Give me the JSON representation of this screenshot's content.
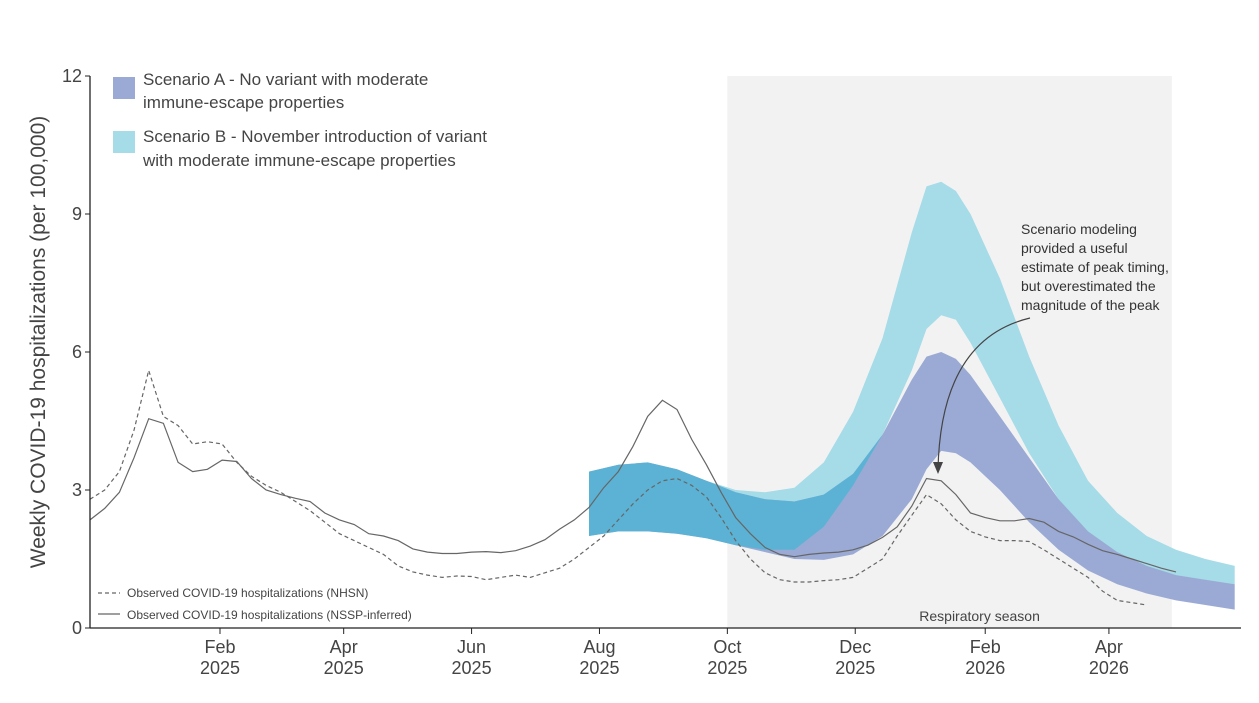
{
  "chart_data": {
    "type": "line",
    "ylabel": "Weekly COVID-19 hospitalizations (per 100,000)",
    "xlabel": "",
    "ylim": [
      0,
      12
    ],
    "y_ticks": [
      0,
      3,
      6,
      9,
      12
    ],
    "x_ticks": [
      {
        "date": "2025-02-01",
        "month": "Feb",
        "year": "2025"
      },
      {
        "date": "2025-04-01",
        "month": "Apr",
        "year": "2025"
      },
      {
        "date": "2025-06-01",
        "month": "Jun",
        "year": "2025"
      },
      {
        "date": "2025-08-01",
        "month": "Aug",
        "year": "2025"
      },
      {
        "date": "2025-10-01",
        "month": "Oct",
        "year": "2025"
      },
      {
        "date": "2025-12-01",
        "month": "Dec",
        "year": "2025"
      },
      {
        "date": "2026-02-01",
        "month": "Feb",
        "year": "2026"
      },
      {
        "date": "2026-04-01",
        "month": "Apr",
        "year": "2026"
      }
    ],
    "season": {
      "label": "Respiratory season",
      "start": "2025-10-01",
      "end": "2026-05-01"
    },
    "legend": {
      "scenario_a_line1": "Scenario A - No variant with moderate",
      "scenario_a_line2": "immune-escape properties",
      "scenario_b_line1": "Scenario B - November introduction of variant",
      "scenario_b_line2": "with moderate immune-escape properties",
      "nhsn": "Observed COVID-19 hospitalizations (NHSN)",
      "nssp": "Observed COVID-19 hospitalizations (NSSP-inferred)"
    },
    "annotation": {
      "lines": [
        "Scenario modeling",
        "provided a useful",
        "estimate of peak timing,",
        "but overestimated the",
        "magnitude of the peak"
      ]
    },
    "colors": {
      "scenario_a": "#9aaad4",
      "scenario_b": "#a6dbe8",
      "overlap": "#5cb2d4",
      "season_shade": "#f2f2f2",
      "observed": "#666666"
    },
    "series": [
      {
        "name": "Observed COVID-19 hospitalizations (NHSN)",
        "style": "dashed",
        "x": [
          "2024-12-01",
          "2024-12-08",
          "2024-12-15",
          "2024-12-22",
          "2024-12-29",
          "2025-01-05",
          "2025-01-12",
          "2025-01-19",
          "2025-01-26",
          "2025-02-02",
          "2025-02-09",
          "2025-02-16",
          "2025-02-23",
          "2025-03-02",
          "2025-03-09",
          "2025-03-16",
          "2025-03-23",
          "2025-03-30",
          "2025-04-06",
          "2025-04-13",
          "2025-04-20",
          "2025-04-27",
          "2025-05-04",
          "2025-05-11",
          "2025-05-18",
          "2025-05-25",
          "2025-06-01",
          "2025-06-08",
          "2025-06-15",
          "2025-06-22",
          "2025-06-29",
          "2025-07-06",
          "2025-07-13",
          "2025-07-20",
          "2025-07-27",
          "2025-08-03",
          "2025-08-10",
          "2025-08-17",
          "2025-08-24",
          "2025-08-31",
          "2025-09-07",
          "2025-09-14",
          "2025-09-21",
          "2025-09-28",
          "2025-10-05",
          "2025-10-12",
          "2025-10-19",
          "2025-10-26",
          "2025-11-02",
          "2025-11-09",
          "2025-11-16",
          "2025-11-23",
          "2025-11-30",
          "2025-12-07",
          "2025-12-14",
          "2025-12-21",
          "2025-12-28",
          "2026-01-04",
          "2026-01-11",
          "2026-01-18",
          "2026-01-25",
          "2026-02-01",
          "2026-02-08",
          "2026-02-15",
          "2026-02-22",
          "2026-03-01",
          "2026-03-08",
          "2026-03-15",
          "2026-03-22",
          "2026-03-29",
          "2026-04-05",
          "2026-04-12",
          "2026-04-19"
        ],
        "values": [
          2.8,
          3.0,
          3.4,
          4.3,
          5.6,
          4.6,
          4.4,
          4.0,
          4.05,
          4.0,
          3.6,
          3.3,
          3.1,
          2.95,
          2.75,
          2.55,
          2.3,
          2.05,
          1.9,
          1.75,
          1.6,
          1.35,
          1.22,
          1.15,
          1.1,
          1.13,
          1.12,
          1.05,
          1.1,
          1.15,
          1.1,
          1.2,
          1.3,
          1.5,
          1.75,
          2.0,
          2.35,
          2.7,
          3.0,
          3.2,
          3.25,
          3.1,
          2.85,
          2.4,
          1.9,
          1.5,
          1.2,
          1.05,
          1.0,
          1.0,
          1.03,
          1.05,
          1.1,
          1.3,
          1.5,
          2.0,
          2.45,
          2.9,
          2.7,
          2.35,
          2.1,
          1.98,
          1.9,
          1.9,
          1.88,
          1.7,
          1.5,
          1.3,
          1.1,
          0.8,
          0.6,
          0.55,
          0.5
        ]
      },
      {
        "name": "Observed COVID-19 hospitalizations (NSSP-inferred)",
        "style": "solid",
        "x": [
          "2024-12-01",
          "2024-12-08",
          "2024-12-15",
          "2024-12-22",
          "2024-12-29",
          "2025-01-05",
          "2025-01-12",
          "2025-01-19",
          "2025-01-26",
          "2025-02-02",
          "2025-02-09",
          "2025-02-16",
          "2025-02-23",
          "2025-03-02",
          "2025-03-09",
          "2025-03-16",
          "2025-03-23",
          "2025-03-30",
          "2025-04-06",
          "2025-04-13",
          "2025-04-20",
          "2025-04-27",
          "2025-05-04",
          "2025-05-11",
          "2025-05-18",
          "2025-05-25",
          "2025-06-01",
          "2025-06-08",
          "2025-06-15",
          "2025-06-22",
          "2025-06-29",
          "2025-07-06",
          "2025-07-13",
          "2025-07-20",
          "2025-07-27",
          "2025-08-03",
          "2025-08-10",
          "2025-08-17",
          "2025-08-24",
          "2025-08-31",
          "2025-09-07",
          "2025-09-14",
          "2025-09-21",
          "2025-09-28",
          "2025-10-05",
          "2025-10-12",
          "2025-10-19",
          "2025-10-26",
          "2025-11-02",
          "2025-11-09",
          "2025-11-16",
          "2025-11-23",
          "2025-11-30",
          "2025-12-07",
          "2025-12-14",
          "2025-12-21",
          "2025-12-28",
          "2026-01-04",
          "2026-01-11",
          "2026-01-18",
          "2026-01-25",
          "2026-02-01",
          "2026-02-08",
          "2026-02-15",
          "2026-02-22",
          "2026-03-01",
          "2026-03-08",
          "2026-03-15",
          "2026-03-22",
          "2026-03-29",
          "2026-04-05",
          "2026-04-12",
          "2026-04-19",
          "2026-04-26",
          "2026-05-03"
        ],
        "values": [
          2.35,
          2.6,
          2.95,
          3.7,
          4.55,
          4.45,
          3.6,
          3.4,
          3.45,
          3.65,
          3.62,
          3.25,
          3.0,
          2.9,
          2.82,
          2.75,
          2.5,
          2.35,
          2.25,
          2.05,
          2.0,
          1.9,
          1.72,
          1.65,
          1.62,
          1.62,
          1.65,
          1.66,
          1.64,
          1.68,
          1.78,
          1.92,
          2.15,
          2.35,
          2.62,
          3.05,
          3.4,
          3.95,
          4.6,
          4.95,
          4.75,
          4.1,
          3.55,
          2.95,
          2.4,
          2.05,
          1.75,
          1.6,
          1.55,
          1.6,
          1.63,
          1.65,
          1.7,
          1.8,
          1.97,
          2.2,
          2.65,
          3.25,
          3.2,
          2.9,
          2.5,
          2.4,
          2.33,
          2.33,
          2.38,
          2.3,
          2.1,
          1.98,
          1.82,
          1.68,
          1.6,
          1.5,
          1.4,
          1.3,
          1.22
        ]
      },
      {
        "name": "Scenario A - No variant with moderate immune-escape properties",
        "style": "band",
        "x": [
          "2025-07-27",
          "2025-08-10",
          "2025-08-24",
          "2025-09-07",
          "2025-09-21",
          "2025-10-05",
          "2025-10-19",
          "2025-11-02",
          "2025-11-16",
          "2025-11-30",
          "2025-12-14",
          "2025-12-28",
          "2026-01-04",
          "2026-01-11",
          "2026-01-18",
          "2026-01-25",
          "2026-02-08",
          "2026-02-22",
          "2026-03-08",
          "2026-03-22",
          "2026-04-05",
          "2026-04-19",
          "2026-05-03",
          "2026-05-17",
          "2026-05-31"
        ],
        "lower": [
          2.0,
          2.1,
          2.1,
          2.05,
          1.95,
          1.8,
          1.65,
          1.5,
          1.48,
          1.6,
          2.0,
          2.8,
          3.45,
          3.85,
          3.8,
          3.6,
          3.0,
          2.3,
          1.7,
          1.25,
          0.95,
          0.75,
          0.6,
          0.5,
          0.4
        ],
        "upper": [
          3.4,
          3.55,
          3.6,
          3.45,
          3.2,
          2.95,
          2.8,
          2.75,
          2.9,
          3.35,
          4.2,
          5.4,
          5.9,
          6.0,
          5.85,
          5.5,
          4.6,
          3.7,
          2.8,
          2.1,
          1.65,
          1.35,
          1.15,
          1.05,
          0.95
        ]
      },
      {
        "name": "Scenario B - November introduction of variant with moderate immune-escape properties",
        "style": "band",
        "x": [
          "2025-07-27",
          "2025-08-10",
          "2025-08-24",
          "2025-09-07",
          "2025-09-21",
          "2025-10-05",
          "2025-10-19",
          "2025-11-02",
          "2025-11-16",
          "2025-11-30",
          "2025-12-14",
          "2025-12-28",
          "2026-01-04",
          "2026-01-11",
          "2026-01-18",
          "2026-01-25",
          "2026-02-08",
          "2026-02-22",
          "2026-03-08",
          "2026-03-22",
          "2026-04-05",
          "2026-04-19",
          "2026-05-03",
          "2026-05-17",
          "2026-05-31"
        ],
        "lower": [
          2.0,
          2.1,
          2.1,
          2.05,
          1.95,
          1.8,
          1.7,
          1.7,
          2.2,
          3.1,
          4.2,
          5.6,
          6.5,
          6.8,
          6.7,
          6.2,
          5.0,
          3.8,
          2.8,
          2.1,
          1.65,
          1.35,
          1.15,
          1.05,
          0.95
        ],
        "upper": [
          3.4,
          3.55,
          3.6,
          3.45,
          3.2,
          3.0,
          2.95,
          3.05,
          3.6,
          4.7,
          6.3,
          8.6,
          9.6,
          9.7,
          9.5,
          9.0,
          7.6,
          5.9,
          4.4,
          3.2,
          2.5,
          2.0,
          1.7,
          1.5,
          1.35
        ]
      }
    ]
  }
}
